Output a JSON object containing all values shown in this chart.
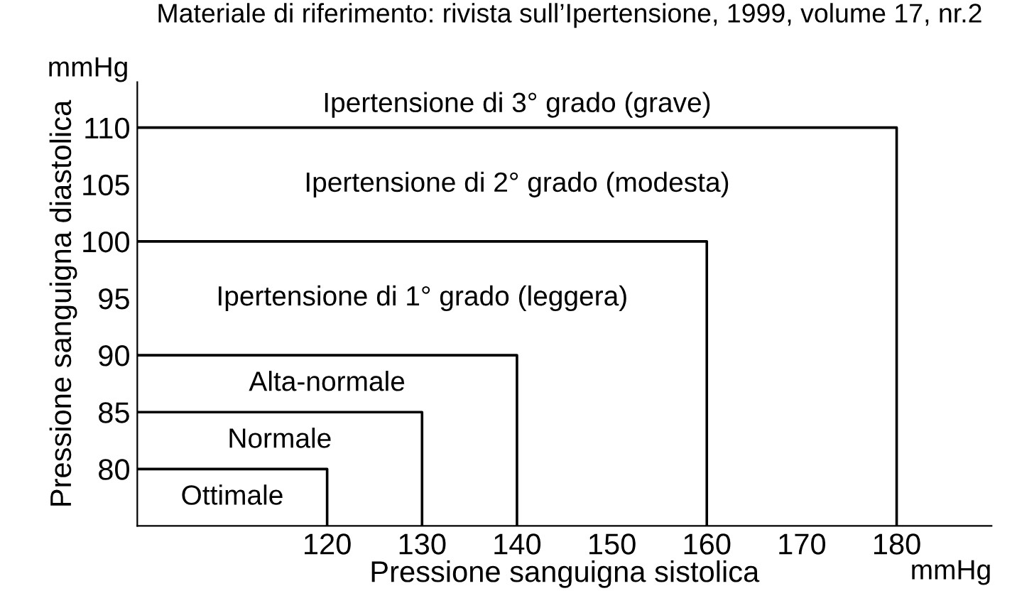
{
  "chart_data": {
    "type": "line",
    "title": "Materiale di riferimento: rivista sull’Ipertensione, 1999, volume 17, nr.2",
    "xlabel": "Pressione sanguigna sistolica",
    "ylabel": "Pressione sanguigna diastolica",
    "series": [
      {
        "name": "Ottimale",
        "color": "#000000",
        "x": [
          100,
          120,
          120
        ],
        "values": [
          80,
          80,
          75
        ]
      },
      {
        "name": "Normale",
        "color": "#000000",
        "x": [
          100,
          130,
          130
        ],
        "values": [
          85,
          85,
          75
        ]
      },
      {
        "name": "Alta-normale",
        "color": "#000000",
        "x": [
          100,
          140,
          140
        ],
        "values": [
          90,
          90,
          75
        ]
      },
      {
        "name": "Ipertensione di 1° grado (leggera)",
        "color": "#000000",
        "x": [
          100,
          160,
          160
        ],
        "values": [
          100,
          100,
          75
        ]
      },
      {
        "name": "Ipertensione di 2° grado (modesta)",
        "color": "#000000",
        "x": [
          100,
          180,
          180
        ],
        "values": [
          110,
          110,
          75
        ]
      }
    ],
    "annotations": [
      "mmHg",
      "mmHg",
      "Ipertensione di 3° grado (grave)"
    ],
    "xlim": [
      100,
      190
    ],
    "ylim": [
      75,
      114
    ],
    "xticks": [
      120,
      130,
      140,
      150,
      160,
      170,
      180
    ],
    "yticks": [
      80,
      85,
      90,
      95,
      100,
      105,
      110
    ],
    "grid": false,
    "legend": false,
    "marker": "none",
    "line_style": "solid"
  }
}
